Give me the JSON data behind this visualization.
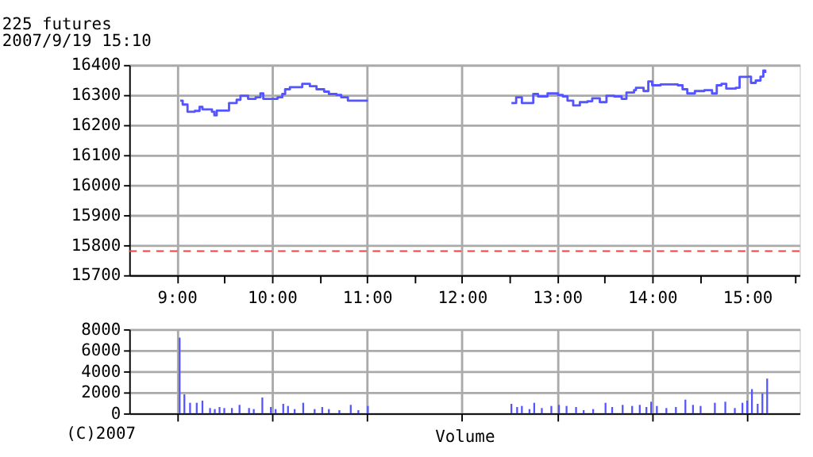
{
  "chart_data": [
    {
      "type": "step",
      "title": "225 futures",
      "subtitle": "2007/9/19 15:10",
      "x": [
        9.036,
        9.062,
        9.113,
        9.19,
        9.24,
        9.27,
        9.37,
        9.395,
        9.42,
        9.52,
        9.55,
        9.63,
        9.67,
        9.75,
        9.83,
        9.88,
        9.91,
        10.01,
        10.06,
        10.11,
        10.14,
        10.19,
        10.32,
        10.4,
        10.47,
        10.55,
        10.6,
        10.68,
        10.73,
        10.8,
        10.96,
        11.01,
        11.5,
        12.52,
        12.57,
        12.63,
        12.73,
        12.75,
        12.8,
        12.9,
        13.01,
        13.06,
        13.11,
        13.17,
        13.24,
        13.32,
        13.37,
        13.45,
        13.52,
        13.6,
        13.68,
        13.73,
        13.81,
        13.83,
        13.91,
        13.96,
        14.0,
        14.09,
        14.27,
        14.32,
        14.37,
        14.45,
        14.55,
        14.63,
        14.68,
        14.73,
        14.78,
        14.88,
        14.92,
        15.01,
        15.04,
        15.09,
        15.14,
        15.17,
        15.19
      ],
      "series": [
        {
          "color": "#5555ff",
          "values": [
            16281,
            16268,
            16244,
            16247,
            16260,
            16252,
            16244,
            16232,
            16248,
            16248,
            16273,
            16284,
            16297,
            16287,
            16292,
            16305,
            16287,
            16287,
            16292,
            16303,
            16319,
            16326,
            16337,
            16329,
            16319,
            16311,
            16303,
            16300,
            16292,
            16281,
            16281,
            16281,
            null,
            16273,
            16292,
            16273,
            16273,
            16303,
            16295,
            16305,
            16300,
            16295,
            16281,
            16265,
            16276,
            16279,
            16289,
            16276,
            16297,
            16295,
            16287,
            16308,
            16316,
            16324,
            16313,
            16345,
            16332,
            16335,
            16332,
            16319,
            16305,
            16313,
            16316,
            16305,
            16332,
            16337,
            16321,
            16324,
            16360,
            16361,
            16340,
            16348,
            16361,
            16381,
            16373
          ]
        }
      ],
      "xlim": [
        8.5,
        15.55
      ],
      "xticks": [
        {
          "value": 9,
          "label": "9:00"
        },
        {
          "value": 9.5,
          "label": null
        },
        {
          "value": 10,
          "label": "10:00"
        },
        {
          "value": 10.5,
          "label": null
        },
        {
          "value": 11,
          "label": "11:00"
        },
        {
          "value": 11.5,
          "label": null
        },
        {
          "value": 12,
          "label": "12:00"
        },
        {
          "value": 12.5,
          "label": null
        },
        {
          "value": 13,
          "label": "13:00"
        },
        {
          "value": 13.5,
          "label": null
        },
        {
          "value": 14,
          "label": "14:00"
        },
        {
          "value": 14.5,
          "label": null
        },
        {
          "value": 15,
          "label": "15:00"
        },
        {
          "value": 15.5,
          "label": null
        }
      ],
      "ylim": [
        15700,
        16400
      ],
      "yticks": [
        15700,
        15800,
        15900,
        16000,
        16100,
        16200,
        16300,
        16400
      ],
      "grid": true,
      "ref_lines": [
        {
          "axis": "y",
          "value": 15780,
          "label": null,
          "color": "#ee4444",
          "line_style": "dashed"
        }
      ]
    },
    {
      "type": "bar",
      "xlabel": "Volume",
      "annotations": [
        "(C)2007"
      ],
      "x": [
        9.03,
        9.08,
        9.14,
        9.21,
        9.27,
        9.35,
        9.4,
        9.45,
        9.5,
        9.58,
        9.66,
        9.76,
        9.81,
        9.9,
        9.99,
        10.04,
        10.12,
        10.17,
        10.24,
        10.33,
        10.45,
        10.53,
        10.6,
        10.71,
        10.83,
        10.91,
        11.01,
        12.52,
        12.58,
        12.63,
        12.71,
        12.76,
        12.84,
        12.94,
        13.02,
        13.1,
        13.2,
        13.28,
        13.38,
        13.51,
        13.58,
        13.69,
        13.79,
        13.87,
        13.94,
        13.99,
        14.05,
        14.15,
        14.25,
        14.35,
        14.43,
        14.51,
        14.66,
        14.77,
        14.87,
        14.95,
        15.0,
        15.05,
        15.11,
        15.16,
        15.21
      ],
      "series": [
        {
          "color": "#5555ff",
          "values": [
            7200,
            1800,
            1000,
            1000,
            1200,
            500,
            400,
            600,
            500,
            500,
            800,
            500,
            400,
            1500,
            600,
            400,
            900,
            700,
            400,
            1000,
            400,
            600,
            400,
            300,
            800,
            300,
            700,
            900,
            600,
            700,
            400,
            1000,
            500,
            700,
            800,
            700,
            600,
            300,
            400,
            1000,
            600,
            800,
            700,
            800,
            600,
            1100,
            700,
            500,
            600,
            1300,
            800,
            700,
            1000,
            1100,
            500,
            1000,
            1200,
            2300,
            900,
            1900,
            3300
          ]
        }
      ],
      "xlim": [
        8.5,
        15.55
      ],
      "xticks": [
        {
          "value": 9,
          "label": null
        },
        {
          "value": 10,
          "label": null
        },
        {
          "value": 11,
          "label": null
        },
        {
          "value": 12,
          "label": null
        },
        {
          "value": 13,
          "label": null
        },
        {
          "value": 14,
          "label": null
        },
        {
          "value": 15,
          "label": null
        }
      ],
      "ylim": [
        0,
        8000
      ],
      "yticks": [
        0,
        2000,
        4000,
        6000,
        8000
      ],
      "grid": true,
      "tick_labels": "y"
    }
  ]
}
